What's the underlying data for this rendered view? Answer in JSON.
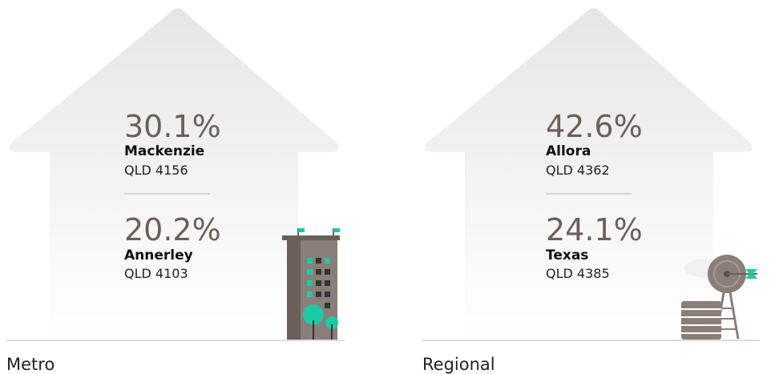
{
  "panels": [
    {
      "label": "Metro",
      "entries": [
        {
          "percent": "30.1%",
          "suburb": "Mackenzie",
          "postcode": "QLD 4156"
        },
        {
          "percent": "20.2%",
          "suburb": "Annerley",
          "postcode": "QLD 4103"
        }
      ]
    },
    {
      "label": "Regional",
      "entries": [
        {
          "percent": "42.6%",
          "suburb": "Allora",
          "postcode": "QLD 4362"
        },
        {
          "percent": "24.1%",
          "suburb": "Texas",
          "postcode": "QLD 4385"
        }
      ]
    }
  ]
}
